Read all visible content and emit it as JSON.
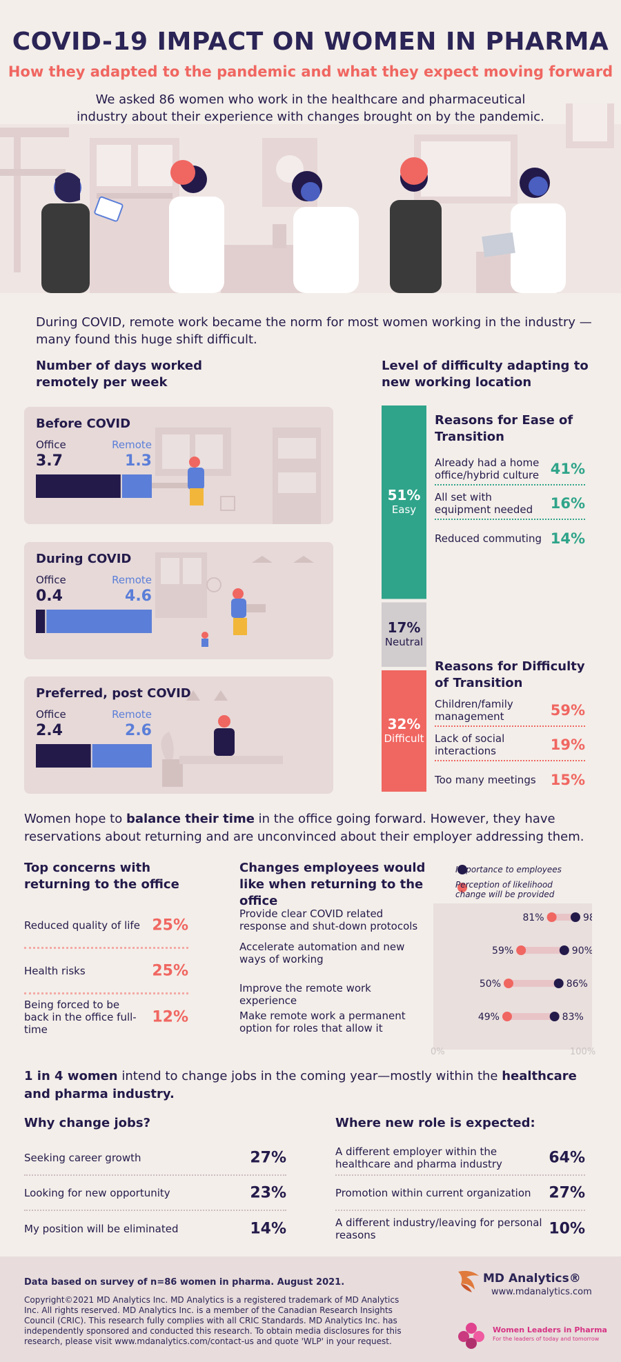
{
  "header": {
    "title": "COVID-19 IMPACT ON WOMEN IN PHARMA",
    "subtitle": "How they adapted to the pandemic and what they expect moving forward",
    "intro": "We asked 86 women who work in the healthcare and pharmaceutical industry about their experience with changes brought on by the pandemic."
  },
  "remote": {
    "lead": "During COVID, remote work became the norm for most women working in the industry — many found this huge shift difficult.",
    "days_title": "Number of days worked remotely per week",
    "office_label": "Office",
    "remote_label": "Remote",
    "cards": [
      {
        "title": "Before COVID",
        "office": "3.7",
        "remote": "1.3"
      },
      {
        "title": "During COVID",
        "office": "0.4",
        "remote": "4.6"
      },
      {
        "title": "Preferred, post COVID",
        "office": "2.4",
        "remote": "2.6"
      }
    ]
  },
  "difficulty": {
    "title": "Level of difficulty adapting to new working location",
    "levels": [
      {
        "pct": "51%",
        "label": "Easy",
        "color": "#2fa48a"
      },
      {
        "pct": "17%",
        "label": "Neutral",
        "color": "#d1ccce"
      },
      {
        "pct": "32%",
        "label": "Difficult",
        "color": "#f06661"
      }
    ],
    "ease_title": "Reasons for Ease of Transition",
    "ease": [
      {
        "text": "Already had a home office/hybrid culture",
        "pct": "41%"
      },
      {
        "text": "All set with equipment needed",
        "pct": "16%"
      },
      {
        "text": "Reduced commuting",
        "pct": "14%"
      }
    ],
    "diff_title": "Reasons for Difficulty of Transition",
    "diff": [
      {
        "text": "Children/family management",
        "pct": "59%"
      },
      {
        "text": "Lack of social interactions",
        "pct": "19%"
      },
      {
        "text": "Too many meetings",
        "pct": "15%"
      }
    ]
  },
  "office_return": {
    "lead_pre": "Women hope to ",
    "lead_bold": "balance their time",
    "lead_post": " in the office going forward. However, they have reservations about returning and are unconvinced about their employer addressing them.",
    "concerns_title": "Top concerns with returning to the office",
    "concerns": [
      {
        "text": "Reduced quality of life",
        "pct": "25%"
      },
      {
        "text": "Health risks",
        "pct": "25%"
      },
      {
        "text": "Being forced to be back in the office full-time",
        "pct": "12%"
      }
    ],
    "changes_title": "Changes employees would like when returning to the office",
    "legend_importance": "Importance to employees",
    "legend_perception": "Perception of likelihood change will be provided",
    "axis_min": "0%",
    "axis_max": "100%"
  },
  "jobs": {
    "lead_bold1": "1 in 4 women",
    "lead_mid": " intend to change jobs in the coming year—mostly within the ",
    "lead_bold2": "healthcare and pharma industry.",
    "why_title": "Why change jobs?",
    "why": [
      {
        "text": "Seeking career growth",
        "pct": "27%"
      },
      {
        "text": "Looking for new opportunity",
        "pct": "23%"
      },
      {
        "text": "My position will be eliminated",
        "pct": "14%"
      }
    ],
    "where_title": "Where new role is expected:",
    "where": [
      {
        "text": "A different employer within the healthcare and pharma industry",
        "pct": "64%"
      },
      {
        "text": "Promotion within current organization",
        "pct": "27%"
      },
      {
        "text": "A different industry/leaving for personal reasons",
        "pct": "10%"
      }
    ]
  },
  "footer": {
    "data_note": "Data based on survey of n=86 women in pharma. August 2021.",
    "copyright": "Copyright©2021 MD Analytics Inc. MD Analytics is a registered trademark of MD Analytics Inc. All rights reserved. MD Analytics Inc. is a member of the Canadian Research Insights Council (CRIC). This research fully complies with all CRIC Standards. MD Analytics Inc. has independently sponsored and conducted this research. To obtain media disclosures for this research, please visit www.mdanalytics.com/contact-us and quote 'WLP' in your request.",
    "brand": "MD Analytics®",
    "url": "www.mdanalytics.com",
    "partner": "Women Leaders in Pharma",
    "partner_tag": "For the leaders of today and tomorrow"
  },
  "colors": {
    "navy": "#231a4a",
    "coral": "#f06661",
    "teal": "#2fa48a",
    "blue": "#5b7ed8",
    "gray": "#d1ccce"
  },
  "chart_data": [
    {
      "type": "bar",
      "stacked": true,
      "orientation": "horizontal",
      "title": "Number of days worked remotely per week",
      "categories": [
        "Before COVID",
        "During COVID",
        "Preferred, post COVID"
      ],
      "series": [
        {
          "name": "Office",
          "values": [
            3.7,
            0.4,
            2.4
          ],
          "color": "#231a4a"
        },
        {
          "name": "Remote",
          "values": [
            1.3,
            4.6,
            2.6
          ],
          "color": "#5b7ed8"
        }
      ]
    },
    {
      "type": "bar",
      "stacked": true,
      "orientation": "vertical",
      "title": "Level of difficulty adapting to new working location",
      "categories": [
        "Easy",
        "Neutral",
        "Difficult"
      ],
      "values": [
        51,
        17,
        32
      ]
    },
    {
      "type": "scatter",
      "title": "Changes employees would like when returning to the office",
      "categories": [
        "Provide clear COVID related response and shut-down protocols",
        "Accelerate automation and new ways of working",
        "Improve the remote work experience",
        "Make remote work a permanent option for roles that allow it"
      ],
      "series": [
        {
          "name": "Importance to employees",
          "values": [
            98,
            90,
            86,
            83
          ],
          "color": "#231a4a"
        },
        {
          "name": "Perception of likelihood change will be provided",
          "values": [
            81,
            59,
            50,
            49
          ],
          "color": "#f06661"
        }
      ],
      "xlim": [
        0,
        100
      ]
    }
  ]
}
